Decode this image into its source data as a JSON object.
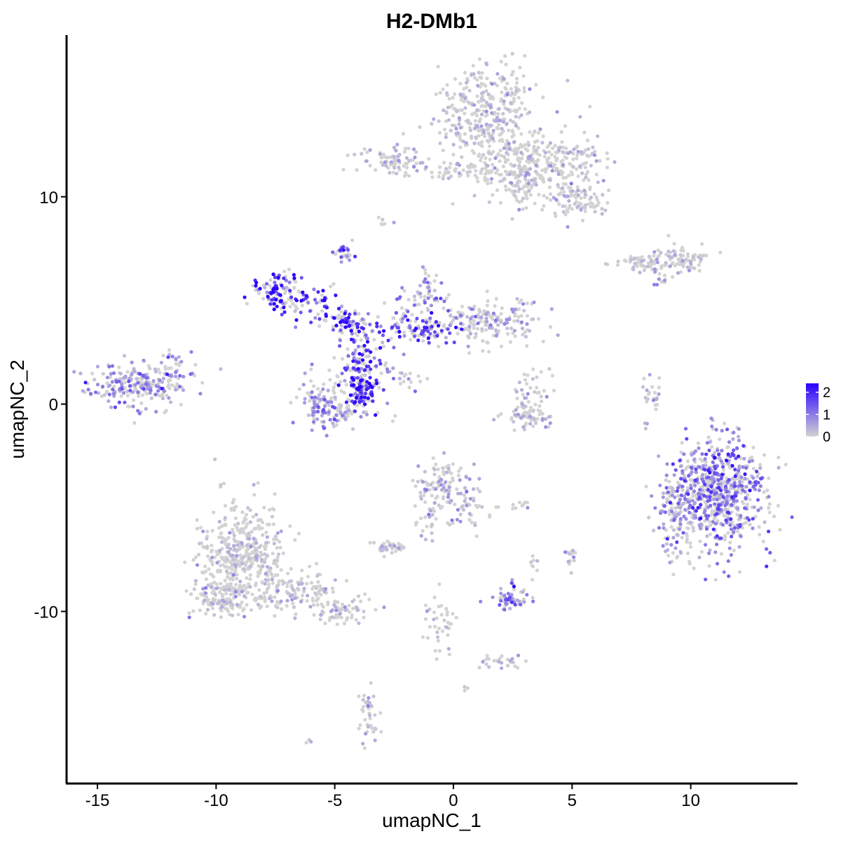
{
  "chart_data": {
    "type": "scatter",
    "title": "H2-DMb1",
    "xlabel": "umapNC_1",
    "ylabel": "umapNC_2",
    "xlim": [
      -16.3,
      14.5
    ],
    "ylim": [
      -18.3,
      17.8
    ],
    "x_ticks": [
      -15,
      -10,
      -5,
      0,
      5,
      10
    ],
    "y_ticks": [
      10,
      0,
      -10
    ],
    "x_tick_labels": [
      "-15",
      "-10",
      "-5",
      "0",
      "5",
      "10"
    ],
    "y_tick_labels": [
      "10",
      "0",
      "-10"
    ],
    "grid": false,
    "legend": {
      "placement": "right",
      "type": "colorbar",
      "min": 0,
      "max": 2.4,
      "ticks": [
        2,
        1,
        0
      ],
      "tick_labels": [
        "2",
        "1",
        "0"
      ],
      "low_color": "#d3d3d3",
      "high_color": "#2a00ff"
    },
    "clusters": [
      {
        "cx": 1.5,
        "cy": 14.0,
        "sx": 1.1,
        "sy": 1.2,
        "n": 360,
        "expr": 0.05
      },
      {
        "cx": 3.6,
        "cy": 11.6,
        "sx": 1.3,
        "sy": 0.8,
        "n": 260,
        "expr": 0.06
      },
      {
        "cx": 5.3,
        "cy": 9.8,
        "sx": 0.6,
        "sy": 0.4,
        "n": 90,
        "expr": 0.08
      },
      {
        "cx": 2.8,
        "cy": 10.6,
        "sx": 0.6,
        "sy": 0.6,
        "n": 60,
        "expr": 0.06
      },
      {
        "cx": 0.5,
        "cy": 11.2,
        "sx": 0.8,
        "sy": 0.2,
        "n": 50,
        "expr": 0.05
      },
      {
        "cx": -2.5,
        "cy": 11.7,
        "sx": 0.8,
        "sy": 0.35,
        "n": 90,
        "expr": 0.08
      },
      {
        "cx": -2.9,
        "cy": 8.8,
        "sx": 0.15,
        "sy": 0.12,
        "n": 6,
        "expr": 0.1
      },
      {
        "cx": -4.6,
        "cy": 7.3,
        "sx": 0.2,
        "sy": 0.25,
        "n": 25,
        "expr": 0.9
      },
      {
        "cx": 8.0,
        "cy": 6.8,
        "sx": 0.7,
        "sy": 0.2,
        "n": 60,
        "expr": 0.05
      },
      {
        "cx": 9.6,
        "cy": 7.0,
        "sx": 0.6,
        "sy": 0.3,
        "n": 80,
        "expr": 0.1
      },
      {
        "cx": 8.8,
        "cy": 6.0,
        "sx": 0.15,
        "sy": 0.15,
        "n": 8,
        "expr": 0.5
      },
      {
        "cx": -7.3,
        "cy": 5.3,
        "sx": 0.5,
        "sy": 0.6,
        "n": 110,
        "expr": 1.8
      },
      {
        "cx": -5.8,
        "cy": 4.9,
        "sx": 0.5,
        "sy": 0.5,
        "n": 40,
        "expr": 1.6
      },
      {
        "cx": -4.5,
        "cy": 4.0,
        "sx": 0.6,
        "sy": 0.3,
        "n": 70,
        "expr": 1.6
      },
      {
        "cx": -3.9,
        "cy": 2.2,
        "sx": 0.5,
        "sy": 0.9,
        "n": 110,
        "expr": 1.5
      },
      {
        "cx": -1.5,
        "cy": 3.6,
        "sx": 1.1,
        "sy": 0.4,
        "n": 110,
        "expr": 1.3
      },
      {
        "cx": -3.8,
        "cy": 0.7,
        "sx": 0.4,
        "sy": 0.5,
        "n": 110,
        "expr": 1.7
      },
      {
        "cx": -5.6,
        "cy": 0.2,
        "sx": 0.5,
        "sy": 0.7,
        "n": 90,
        "expr": 0.5
      },
      {
        "cx": -4.5,
        "cy": -0.5,
        "sx": 0.9,
        "sy": 0.25,
        "n": 50,
        "expr": 0.5
      },
      {
        "cx": -1.2,
        "cy": 5.2,
        "sx": 0.5,
        "sy": 0.7,
        "n": 70,
        "expr": 0.6
      },
      {
        "cx": 1.6,
        "cy": 4.0,
        "sx": 1.1,
        "sy": 0.6,
        "n": 160,
        "expr": 0.3
      },
      {
        "cx": -2.2,
        "cy": 1.3,
        "sx": 0.6,
        "sy": 0.3,
        "n": 20,
        "expr": 0.6
      },
      {
        "cx": -13.2,
        "cy": 0.9,
        "sx": 1.0,
        "sy": 0.55,
        "n": 230,
        "expr": 0.6
      },
      {
        "cx": -11.8,
        "cy": 1.7,
        "sx": 0.5,
        "sy": 0.4,
        "n": 30,
        "expr": 0.4
      },
      {
        "cx": 3.1,
        "cy": -0.6,
        "sx": 0.6,
        "sy": 0.3,
        "n": 60,
        "expr": 0.05
      },
      {
        "cx": 3.3,
        "cy": 0.6,
        "sx": 0.4,
        "sy": 0.7,
        "n": 40,
        "expr": 0.15
      },
      {
        "cx": 8.3,
        "cy": 0.3,
        "sx": 0.2,
        "sy": 0.6,
        "n": 25,
        "expr": 0.3
      },
      {
        "cx": 11.2,
        "cy": -4.3,
        "sx": 1.0,
        "sy": 1.3,
        "n": 720,
        "expr": 0.85
      },
      {
        "cx": 9.3,
        "cy": -5.5,
        "sx": 0.4,
        "sy": 1.0,
        "n": 80,
        "expr": 0.4
      },
      {
        "cx": -0.5,
        "cy": -4.0,
        "sx": 0.5,
        "sy": 0.6,
        "n": 90,
        "expr": 0.2
      },
      {
        "cx": 0.6,
        "cy": -4.8,
        "sx": 0.5,
        "sy": 0.7,
        "n": 50,
        "expr": 0.15
      },
      {
        "cx": -1.2,
        "cy": -5.8,
        "sx": 0.3,
        "sy": 0.6,
        "n": 20,
        "expr": 0.05
      },
      {
        "cx": -2.7,
        "cy": -6.9,
        "sx": 0.4,
        "sy": 0.15,
        "n": 40,
        "expr": 0.03
      },
      {
        "cx": 2.8,
        "cy": -4.9,
        "sx": 0.3,
        "sy": 0.1,
        "n": 10,
        "expr": 0.03
      },
      {
        "cx": 3.4,
        "cy": -7.6,
        "sx": 0.1,
        "sy": 0.3,
        "n": 8,
        "expr": 0.05
      },
      {
        "cx": 5.0,
        "cy": -7.5,
        "sx": 0.1,
        "sy": 0.3,
        "n": 14,
        "expr": 0.4
      },
      {
        "cx": 2.4,
        "cy": -9.5,
        "sx": 0.4,
        "sy": 0.25,
        "n": 55,
        "expr": 0.8
      },
      {
        "cx": 2.5,
        "cy": -8.7,
        "sx": 0.05,
        "sy": 0.2,
        "n": 6,
        "expr": 0.9
      },
      {
        "cx": -8.8,
        "cy": -7.2,
        "sx": 0.9,
        "sy": 1.2,
        "n": 400,
        "expr": 0.04
      },
      {
        "cx": -9.8,
        "cy": -9.4,
        "sx": 0.6,
        "sy": 0.5,
        "n": 120,
        "expr": 0.04
      },
      {
        "cx": -6.8,
        "cy": -9.0,
        "sx": 1.0,
        "sy": 0.5,
        "n": 140,
        "expr": 0.04
      },
      {
        "cx": -4.7,
        "cy": -10.0,
        "sx": 0.6,
        "sy": 0.3,
        "n": 60,
        "expr": 0.04
      },
      {
        "cx": -0.6,
        "cy": -10.5,
        "sx": 0.3,
        "sy": 0.9,
        "n": 40,
        "expr": 0.03
      },
      {
        "cx": 2.0,
        "cy": -12.4,
        "sx": 0.5,
        "sy": 0.2,
        "n": 25,
        "expr": 0.1
      },
      {
        "cx": -3.6,
        "cy": -15.0,
        "sx": 0.25,
        "sy": 0.7,
        "n": 40,
        "expr": 0.15
      },
      {
        "cx": -6.1,
        "cy": -16.2,
        "sx": 0.05,
        "sy": 0.05,
        "n": 3,
        "expr": 0.2
      },
      {
        "cx": 0.5,
        "cy": -13.8,
        "sx": 0.1,
        "sy": 0.1,
        "n": 3,
        "expr": 0.05
      },
      {
        "cx": 5.5,
        "cy": 12.0,
        "sx": 0.3,
        "sy": 0.2,
        "n": 12,
        "expr": 0.05
      }
    ]
  }
}
